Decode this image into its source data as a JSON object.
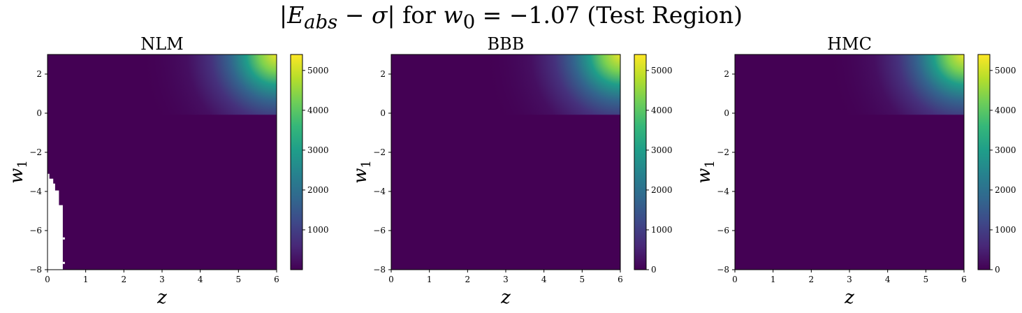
{
  "suptitle": {
    "abs_open": "|",
    "e_sym": "E",
    "e_sub": "abs",
    "minus": " − ",
    "sigma": "σ",
    "abs_close": "|",
    "for_text": " for ",
    "w_sym": "w",
    "w_sub": "0",
    "eq_text": " = −1.07 (Test Region)"
  },
  "colormap": {
    "name": "viridis",
    "stops": [
      "#440154",
      "#482878",
      "#3e4989",
      "#31688e",
      "#26828e",
      "#1f9e89",
      "#35b779",
      "#6ece58",
      "#b5de2b",
      "#fde725"
    ]
  },
  "chart_data": [
    {
      "type": "heatmap",
      "title": "NLM",
      "xlabel": "z",
      "ylabel": "w1",
      "xlim": [
        0,
        6
      ],
      "ylim": [
        -8,
        3
      ],
      "xticks": [
        "0",
        "1",
        "2",
        "3",
        "4",
        "5",
        "6"
      ],
      "yticks": [
        "2",
        "0",
        "−2",
        "−4",
        "−6",
        "−8"
      ],
      "colorbar": {
        "min": 0,
        "max": 5400,
        "ticks": [
          "1000",
          "2000",
          "3000",
          "4000",
          "5000"
        ]
      },
      "max_value": 5400,
      "missing_region": "white area near z 0–0.4 for w1 below about −3 (undefined values)"
    },
    {
      "type": "heatmap",
      "title": "BBB",
      "xlabel": "z",
      "ylabel": "w1",
      "xlim": [
        0,
        6
      ],
      "ylim": [
        -8,
        3
      ],
      "xticks": [
        "0",
        "1",
        "2",
        "3",
        "4",
        "5",
        "6"
      ],
      "yticks": [
        "2",
        "0",
        "−2",
        "−4",
        "−6",
        "−8"
      ],
      "colorbar": {
        "min": 0,
        "max": 5400,
        "ticks": [
          "0",
          "1000",
          "2000",
          "3000",
          "4000",
          "5000"
        ]
      },
      "max_value": 5400
    },
    {
      "type": "heatmap",
      "title": "HMC",
      "xlabel": "z",
      "ylabel": "w1",
      "xlim": [
        0,
        6
      ],
      "ylim": [
        -8,
        3
      ],
      "xticks": [
        "0",
        "1",
        "2",
        "3",
        "4",
        "5",
        "6"
      ],
      "yticks": [
        "2",
        "0",
        "−2",
        "−4",
        "−6",
        "−8"
      ],
      "colorbar": {
        "min": 0,
        "max": 5400,
        "ticks": [
          "0",
          "1000",
          "2000",
          "3000",
          "4000",
          "5000"
        ]
      },
      "max_value": 5400
    }
  ]
}
